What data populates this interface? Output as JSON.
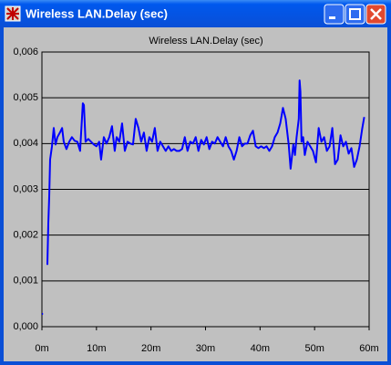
{
  "window_title": "Wireless LAN.Delay (sec)",
  "chart_data": {
    "type": "line",
    "title": "Wireless LAN.Delay (sec)",
    "color": "#0000ff",
    "grid": true,
    "x": [
      0,
      0.2,
      0.5,
      1.0,
      1.17,
      1.34,
      1.5,
      1.84,
      2.17,
      2.5,
      2.84,
      3.3,
      3.7,
      4.0,
      4.5,
      5.0,
      5.5,
      6.0,
      6.5,
      7.0,
      7.5,
      7.7,
      8.0,
      8.5,
      9.0,
      9.5,
      10.0,
      10.5,
      10.85,
      11.35,
      11.85,
      12.35,
      12.85,
      13.35,
      13.7,
      14.2,
      14.7,
      15.2,
      15.7,
      16.2,
      16.7,
      17.2,
      17.7,
      18.2,
      18.7,
      19.2,
      19.7,
      20.2,
      20.7,
      21.2,
      21.7,
      22.2,
      22.7,
      23.2,
      23.7,
      24.2,
      24.7,
      25.2,
      25.7,
      26.2,
      26.7,
      27.2,
      27.7,
      28.2,
      28.7,
      29.2,
      29.7,
      30.2,
      30.7,
      31.2,
      31.7,
      32.2,
      32.7,
      33.2,
      33.7,
      34.2,
      34.7,
      35.2,
      35.7,
      36.2,
      36.7,
      37.2,
      37.7,
      38.2,
      38.7,
      39.2,
      39.7,
      40.2,
      40.7,
      41.2,
      41.7,
      42.2,
      42.7,
      43.2,
      43.7,
      44.2,
      44.7,
      45.25,
      45.6,
      46.1,
      46.4,
      46.7,
      47.1,
      47.25,
      47.4,
      47.6,
      47.9,
      48.2,
      48.7,
      49.2,
      49.7,
      50.25,
      50.75,
      51.25,
      51.75,
      52.25,
      52.75,
      53.25,
      53.75,
      54.25,
      54.75,
      55.25,
      55.75,
      56.25,
      56.75,
      57.25,
      57.75,
      58.25,
      58.75,
      59.1
    ],
    "values": [
      0.00028,
      0.00028,
      null,
      0.00135,
      0.00225,
      0.00285,
      0.00365,
      0.00394,
      0.00434,
      0.00398,
      0.00414,
      0.00424,
      0.00434,
      0.00404,
      0.00388,
      0.00404,
      0.00414,
      0.00406,
      0.00404,
      0.00384,
      0.00488,
      0.00484,
      0.00404,
      0.0041,
      0.00404,
      0.00398,
      0.00394,
      0.00404,
      0.00365,
      0.00414,
      0.004,
      0.00414,
      0.00438,
      0.00384,
      0.00414,
      0.00404,
      0.00444,
      0.00384,
      0.00404,
      0.004,
      0.00398,
      0.00454,
      0.00434,
      0.00404,
      0.00424,
      0.00384,
      0.00414,
      0.00404,
      0.00434,
      0.00384,
      0.00404,
      0.00394,
      0.00384,
      0.00394,
      0.00384,
      0.00388,
      0.00384,
      0.00384,
      0.00388,
      0.00414,
      0.00384,
      0.00404,
      0.004,
      0.00414,
      0.00384,
      0.00408,
      0.00398,
      0.00414,
      0.00388,
      0.00404,
      0.004,
      0.00414,
      0.00404,
      0.00394,
      0.00414,
      0.00394,
      0.00384,
      0.00365,
      0.00384,
      0.00414,
      0.00394,
      0.004,
      0.004,
      0.00418,
      0.00428,
      0.00394,
      0.0039,
      0.00394,
      0.0039,
      0.00394,
      0.00384,
      0.00394,
      0.00414,
      0.00424,
      0.00444,
      0.00478,
      0.00454,
      0.00398,
      0.00345,
      0.00398,
      0.00375,
      0.00414,
      0.00454,
      0.00538,
      0.00514,
      0.00404,
      0.00414,
      0.00375,
      0.00404,
      0.00394,
      0.00384,
      0.00359,
      0.00434,
      0.00404,
      0.00414,
      0.00384,
      0.00394,
      0.00434,
      0.00355,
      0.00365,
      0.00418,
      0.00394,
      0.00404,
      0.00378,
      0.0039,
      0.00349,
      0.00365,
      0.00394,
      0.00434,
      0.00458
    ],
    "xlim": [
      0,
      60
    ],
    "xticks": [
      {
        "value": 0,
        "label": "0m"
      },
      {
        "value": 10,
        "label": "10m"
      },
      {
        "value": 20,
        "label": "20m"
      },
      {
        "value": 30,
        "label": "30m"
      },
      {
        "value": 40,
        "label": "40m"
      },
      {
        "value": 50,
        "label": "50m"
      },
      {
        "value": 60,
        "label": "60m"
      }
    ],
    "ylim": [
      0,
      0.006
    ],
    "yticks": [
      {
        "value": 0,
        "label": "0,000"
      },
      {
        "value": 0.001,
        "label": "0,001"
      },
      {
        "value": 0.002,
        "label": "0,002"
      },
      {
        "value": 0.003,
        "label": "0,003"
      },
      {
        "value": 0.004,
        "label": "0,004"
      },
      {
        "value": 0.005,
        "label": "0,005"
      },
      {
        "value": 0.006,
        "label": "0,006"
      }
    ]
  }
}
